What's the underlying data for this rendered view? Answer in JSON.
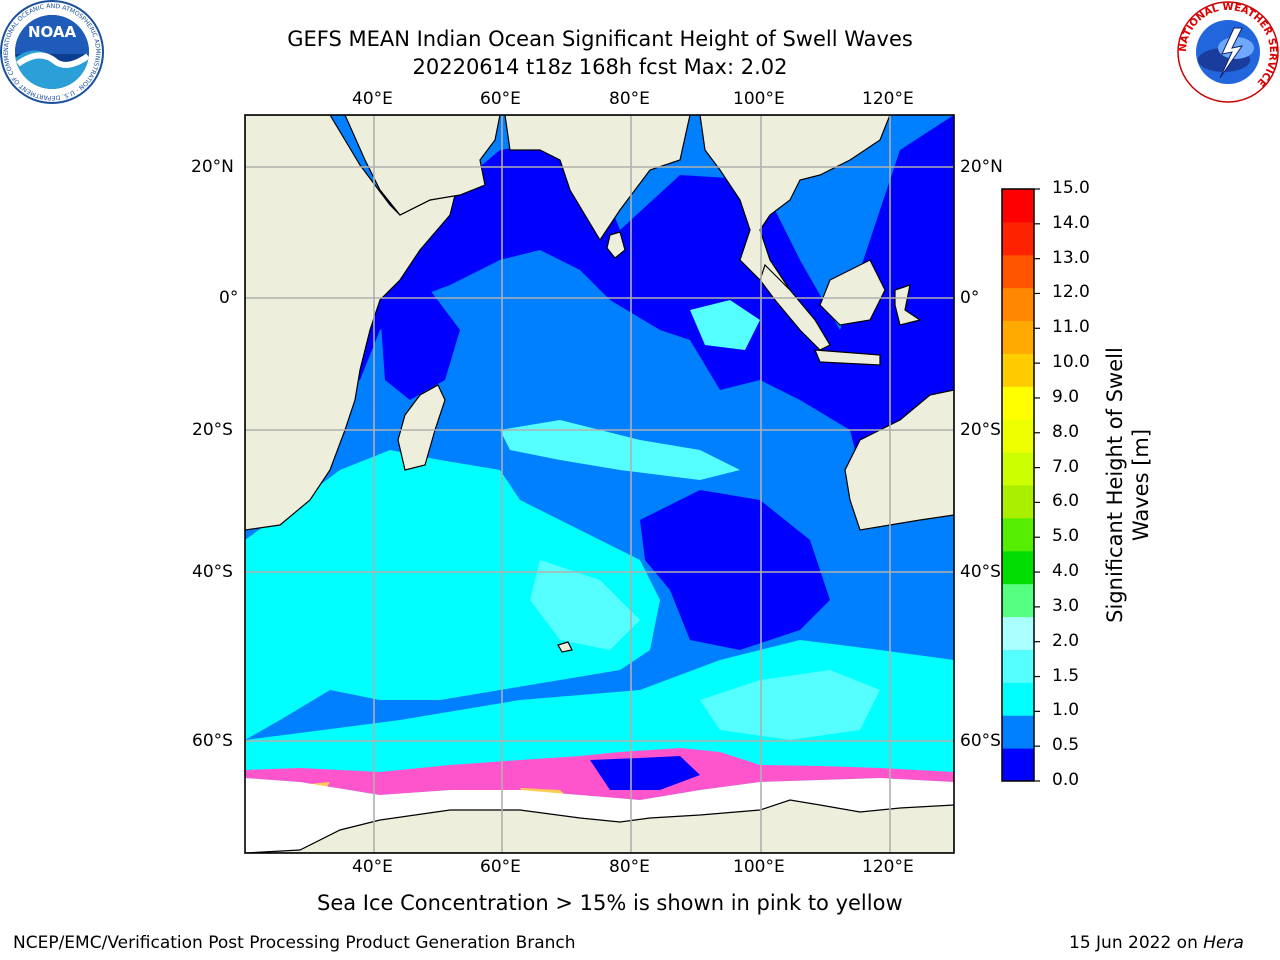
{
  "title": {
    "line1": "GEFS MEAN Indian Ocean Significant Height of Swell Waves",
    "line2": "20220614 t18z 168h fcst   Max: 2.02"
  },
  "map": {
    "lon_labels": [
      "40°E",
      "60°E",
      "80°E",
      "100°E",
      "120°E"
    ],
    "lat_labels": [
      "20°N",
      "0°",
      "20°S",
      "40°S",
      "60°S"
    ],
    "colors": {
      "land": "#eeeedd",
      "ocean_0": "#0000ff",
      "ocean_05": "#0080ff",
      "ocean_10": "#00ffff",
      "ocean_15": "#55ffff",
      "ocean_20": "#aaffff",
      "ice_pink": "#ff55cc",
      "ice_yellow": "#ffcc55",
      "grid": "#b0b0b0"
    }
  },
  "colorbar": {
    "title": "Significant Height of Swell Waves [m]",
    "ticks": [
      "15.0",
      "14.0",
      "13.0",
      "12.0",
      "11.0",
      "10.0",
      "9.0",
      "8.0",
      "7.0",
      "6.0",
      "5.0",
      "4.0",
      "3.0",
      "2.0",
      "1.5",
      "1.0",
      "0.5",
      "0.0"
    ],
    "colors": [
      "#0000ff",
      "#0080ff",
      "#00ffff",
      "#55ffff",
      "#aaffff",
      "#55ff80",
      "#00dd00",
      "#55ee00",
      "#aaee00",
      "#ccff00",
      "#eeff00",
      "#ffff00",
      "#ffcc00",
      "#ffaa00",
      "#ff8800",
      "#ff5500",
      "#ff2200",
      "#ff0000"
    ]
  },
  "caption": "Sea Ice Concentration > 15% is shown in pink to yellow",
  "footer": {
    "left": "NCEP/EMC/Verification Post Processing Product Generation Branch",
    "date": "15 Jun 2022 on ",
    "host": "Hera"
  },
  "logos": {
    "noaa_text": "NOAA",
    "noaa_ring": "NATIONAL OCEANIC AND ATMOSPHERIC ADMINISTRATION · U.S. DEPARTMENT OF COMMERCE",
    "nws_ring": "NATIONAL WEATHER SERVICE"
  }
}
